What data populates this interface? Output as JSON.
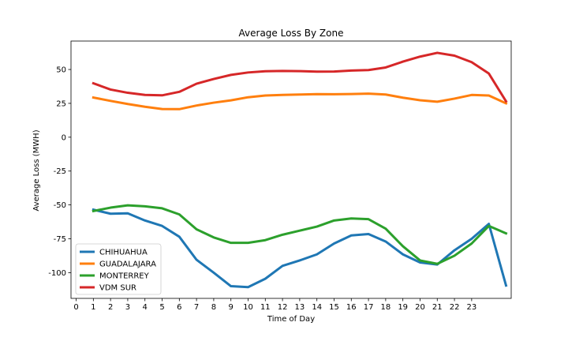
{
  "chart_data": {
    "type": "line",
    "title": "Average Loss By Zone",
    "xlabel": "Time of Day",
    "ylabel": "Average Loss (MWH)",
    "x_ticks": [
      0,
      1,
      2,
      3,
      4,
      5,
      6,
      7,
      8,
      9,
      10,
      11,
      12,
      13,
      14,
      15,
      16,
      17,
      18,
      19,
      20,
      21,
      22,
      23
    ],
    "y_ticks": [
      50,
      25,
      0,
      -25,
      -50,
      -75,
      -100
    ],
    "xlim": [
      -0.3,
      25.3
    ],
    "ylim": [
      -119,
      71
    ],
    "legend_position": "lower-left",
    "x": [
      1,
      2,
      3,
      4,
      5,
      6,
      7,
      8,
      9,
      10,
      11,
      12,
      13,
      14,
      15,
      16,
      17,
      18,
      19,
      20,
      21,
      22,
      23,
      24,
      25
    ],
    "series": [
      {
        "name": "CHIHUAHUA",
        "color": "#1f77b4",
        "values": [
          -53.5,
          -56.5,
          -56.2,
          -61.5,
          -65.5,
          -73.5,
          -90.5,
          -100,
          -110,
          -110.7,
          -104.5,
          -95,
          -91,
          -86.5,
          -78.5,
          -72.5,
          -71.5,
          -77,
          -86.5,
          -92.5,
          -94,
          -83.5,
          -75,
          -64,
          -109.5
        ]
      },
      {
        "name": "GUADALAJARA",
        "color": "#ff7f0e",
        "values": [
          29.3,
          26.8,
          24.5,
          22.5,
          20.8,
          20.7,
          23.4,
          25.5,
          27.2,
          29.5,
          30.8,
          31.2,
          31.5,
          31.8,
          31.7,
          31.9,
          32.2,
          31.5,
          29.2,
          27.3,
          26.2,
          28.5,
          31.2,
          30.8,
          25
        ]
      },
      {
        "name": "MONTERREY",
        "color": "#2ca02c",
        "values": [
          -54.5,
          -52,
          -50.3,
          -51,
          -52.5,
          -57,
          -68,
          -74,
          -78,
          -78,
          -76,
          -72,
          -69,
          -66,
          -61.5,
          -60,
          -60.5,
          -67.5,
          -80.5,
          -91,
          -93.5,
          -87.5,
          -78.5,
          -65.5,
          -71
        ]
      },
      {
        "name": "VDM SUR",
        "color": "#d62728",
        "values": [
          39.8,
          35.2,
          32.8,
          31.2,
          30.9,
          33.5,
          39.5,
          43,
          46,
          47.8,
          48.7,
          48.9,
          48.8,
          48.4,
          48.5,
          49.2,
          49.6,
          51.5,
          55.8,
          59.5,
          62.3,
          60.2,
          55.4,
          47,
          26.5
        ]
      }
    ]
  }
}
